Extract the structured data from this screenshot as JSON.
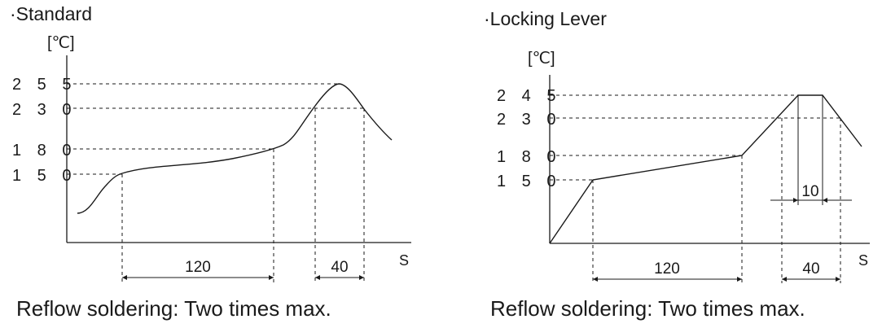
{
  "diagrams": [
    {
      "title": "·Standard",
      "unit_label": "[℃]",
      "x_unit": "S",
      "y_ticks": [
        "2 5 5",
        "2 3 0",
        "1 8 0",
        "1 5 0"
      ],
      "dimensions": [
        "120",
        "40"
      ],
      "caption": "Reflow soldering: Two times max."
    },
    {
      "title": "·Locking Lever",
      "unit_label": "[℃]",
      "x_unit": "S",
      "y_ticks": [
        "2 4 5",
        "2 3 0",
        "1 8 0",
        "1 5 0"
      ],
      "dimensions": [
        "120",
        "40",
        "10"
      ],
      "caption": "Reflow soldering: Two times max."
    }
  ]
}
